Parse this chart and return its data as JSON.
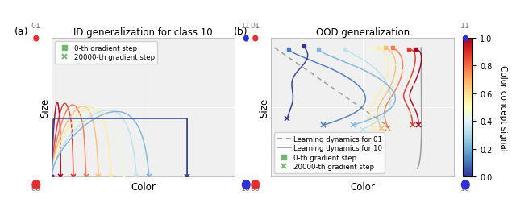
{
  "title_left": "ID generalization for class 10",
  "title_right": "OOD generalization",
  "xlabel": "Color",
  "ylabel": "Size",
  "panel_a_label": "(a)",
  "panel_b_label": "(b)",
  "colorbar_label": "Color concept signal",
  "colorbar_ticks": [
    0.0,
    0.2,
    0.4,
    0.6,
    0.8,
    1.0
  ],
  "dot_red": "#e03030",
  "dot_blue": "#3030d0",
  "n_curves": 10,
  "cmap": "RdYlBu_r",
  "legend_label_start": "0-th gradient step",
  "legend_label_end": "20000-th gradient step",
  "legend_label_dashed": "Learning dynamics for 01",
  "legend_label_solid": "Learning dynamics for 10",
  "bg_color": "#f0f0f0"
}
